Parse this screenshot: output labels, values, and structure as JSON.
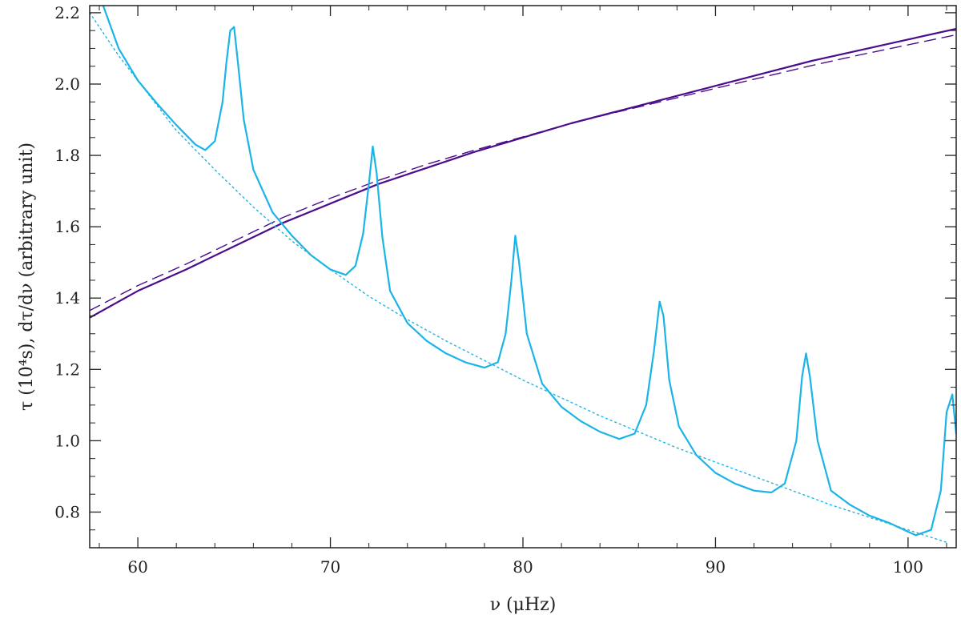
{
  "chart_data": {
    "type": "line",
    "xlabel": "ν (μHz)",
    "ylabel": "τ (10⁴s),  dτ/dν (arbitrary unit)",
    "xlim": [
      57.5,
      102.5
    ],
    "ylim": [
      0.7,
      2.22
    ],
    "x_ticks": [
      60,
      70,
      80,
      90,
      100
    ],
    "x_tick_labels": [
      "60",
      "70",
      "80",
      "90",
      "100"
    ],
    "y_ticks": [
      0.8,
      1.0,
      1.2,
      1.4,
      1.6,
      1.8,
      2.0,
      2.2
    ],
    "y_tick_labels": [
      "0.8",
      "1.0",
      "1.2",
      "1.4",
      "1.6",
      "1.8",
      "2.0",
      "2.2"
    ],
    "grid": false,
    "colors": {
      "cyan": "#1ab4e6",
      "purple": "#4b0d8c"
    },
    "series": [
      {
        "style": "solid",
        "color": "#4b0d8c",
        "x": [
          57.5,
          60,
          62.5,
          65,
          67.5,
          70,
          72.5,
          75,
          77.5,
          80,
          82.5,
          85,
          87.5,
          90,
          92.5,
          95,
          97.5,
          100,
          102.5
        ],
        "y": [
          1.345,
          1.42,
          1.48,
          1.545,
          1.61,
          1.665,
          1.72,
          1.765,
          1.81,
          1.85,
          1.89,
          1.925,
          1.96,
          1.995,
          2.03,
          2.065,
          2.095,
          2.125,
          2.155
        ]
      },
      {
        "style": "dashed",
        "color": "#4b0d8c",
        "x": [
          57.5,
          60,
          62.5,
          65,
          67.5,
          70,
          72.5,
          75,
          77.5,
          80,
          82.5,
          85,
          87.5,
          90,
          92.5,
          95,
          97.5,
          100,
          102.5
        ],
        "y": [
          1.365,
          1.435,
          1.495,
          1.56,
          1.625,
          1.68,
          1.73,
          1.775,
          1.815,
          1.852,
          1.89,
          1.923,
          1.955,
          1.988,
          2.02,
          2.052,
          2.082,
          2.11,
          2.138
        ]
      },
      {
        "style": "dotted",
        "color": "#1ab4e6",
        "x": [
          57.5,
          59,
          60,
          62,
          64,
          66,
          68,
          70,
          72,
          74,
          76,
          78,
          80,
          82,
          84,
          86,
          88,
          90,
          92,
          94,
          96,
          98,
          100,
          102
        ],
        "y": [
          2.2,
          2.08,
          2.01,
          1.87,
          1.76,
          1.655,
          1.56,
          1.48,
          1.405,
          1.34,
          1.28,
          1.225,
          1.17,
          1.12,
          1.07,
          1.025,
          0.98,
          0.94,
          0.9,
          0.86,
          0.82,
          0.785,
          0.75,
          0.715
        ]
      },
      {
        "style": "solid",
        "color": "#1ab4e6",
        "x": [
          58.2,
          59,
          60,
          61,
          62,
          63,
          63.5,
          64,
          64.4,
          64.6,
          64.8,
          65.0,
          65.2,
          65.5,
          66,
          67,
          68,
          69,
          70,
          70.8,
          71.3,
          71.7,
          72.0,
          72.2,
          72.4,
          72.7,
          73.1,
          74,
          75,
          76,
          77,
          78,
          78.7,
          79.1,
          79.4,
          79.6,
          79.8,
          80.2,
          81,
          82,
          83,
          84,
          85,
          85.8,
          86.4,
          86.8,
          87.1,
          87.3,
          87.6,
          88.1,
          89,
          90,
          91,
          92,
          92.9,
          93.6,
          94.2,
          94.5,
          94.7,
          94.9,
          95.3,
          96,
          97,
          98,
          99,
          100,
          100.4,
          101.2,
          101.7,
          102.0,
          102.3,
          102.5
        ],
        "y": [
          2.22,
          2.1,
          2.01,
          1.945,
          1.885,
          1.83,
          1.815,
          1.84,
          1.95,
          2.06,
          2.15,
          2.16,
          2.06,
          1.9,
          1.76,
          1.64,
          1.575,
          1.52,
          1.48,
          1.465,
          1.49,
          1.58,
          1.72,
          1.825,
          1.75,
          1.57,
          1.42,
          1.33,
          1.28,
          1.245,
          1.22,
          1.205,
          1.22,
          1.3,
          1.45,
          1.575,
          1.5,
          1.3,
          1.16,
          1.095,
          1.055,
          1.025,
          1.005,
          1.02,
          1.1,
          1.25,
          1.39,
          1.35,
          1.17,
          1.04,
          0.96,
          0.91,
          0.88,
          0.86,
          0.855,
          0.88,
          1.0,
          1.18,
          1.245,
          1.18,
          1.0,
          0.86,
          0.82,
          0.79,
          0.77,
          0.745,
          0.735,
          0.75,
          0.86,
          1.08,
          1.13,
          1.02
        ]
      }
    ]
  }
}
